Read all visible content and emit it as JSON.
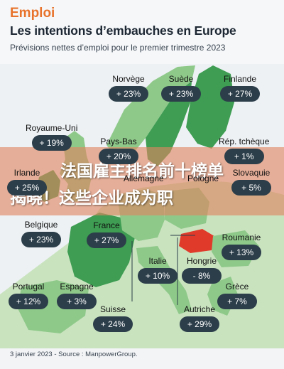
{
  "header": {
    "kicker": "Emploi",
    "title": "Les intentions d’embauches en Europe",
    "subtitle": "Prévisions nettes d’emploi pour le premier trimestre 2023"
  },
  "banner": {
    "line1": "法国雇主排名前十榜单",
    "line2": "揭晓！这些企业成为职"
  },
  "countries": [
    {
      "name": "Norvège",
      "value": "+ 23%"
    },
    {
      "name": "Suède",
      "value": "+ 23%"
    },
    {
      "name": "Finlande",
      "value": "+ 27%"
    },
    {
      "name": "Royaume-Uni",
      "value": "+ 19%"
    },
    {
      "name": "Pays-Bas",
      "value": "+ 20%"
    },
    {
      "name": "Rép. tchèque",
      "value": "+ 1%"
    },
    {
      "name": "Irlande",
      "value": "+ 25%"
    },
    {
      "name": "Allemagne",
      "value": ""
    },
    {
      "name": "Pologne",
      "value": ""
    },
    {
      "name": "Slovaquie",
      "value": "+ 5%"
    },
    {
      "name": "Belgique",
      "value": "+ 23%"
    },
    {
      "name": "France",
      "value": "+ 27%"
    },
    {
      "name": "Roumanie",
      "value": "+ 13%"
    },
    {
      "name": "Italie",
      "value": "+ 10%"
    },
    {
      "name": "Hongrie",
      "value": "- 8%"
    },
    {
      "name": "Portugal",
      "value": "+ 12%"
    },
    {
      "name": "Espagne",
      "value": "+ 3%"
    },
    {
      "name": "Grèce",
      "value": "+ 7%"
    },
    {
      "name": "Suisse",
      "value": "+ 24%"
    },
    {
      "name": "Autriche",
      "value": "+ 29%"
    }
  ],
  "colors": {
    "accent": "#e8732c",
    "pill": "#2c3e4a",
    "land_light": "#c9e3bf",
    "land_mid": "#8fc98a",
    "land_dark": "#3e9d52",
    "negative": "#e03a2a"
  },
  "footer": {
    "source": "3 janvier 2023 - Source : ManpowerGroup."
  }
}
